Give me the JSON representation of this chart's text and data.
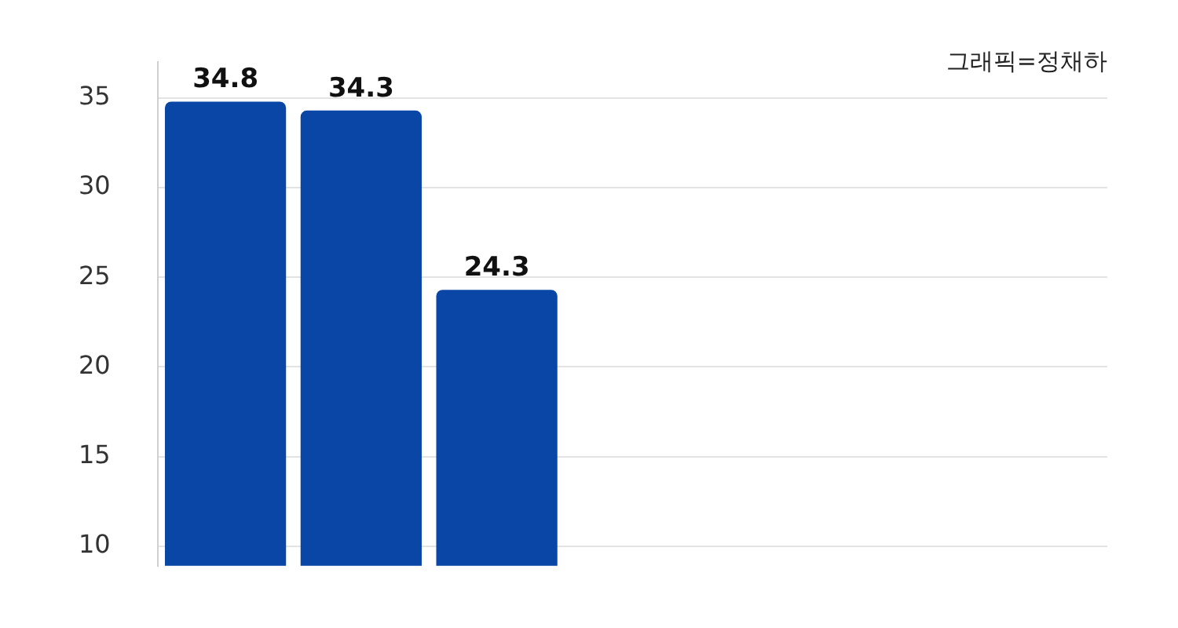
{
  "chart_data": {
    "type": "bar",
    "categories": [
      null,
      null,
      null,
      null,
      null,
      null,
      null
    ],
    "values": [
      34.8,
      34.3,
      24.3,
      null,
      null,
      null,
      null
    ],
    "color": "#0a46a5",
    "ylim": [
      8.9,
      37
    ],
    "yticks": [
      10,
      15,
      20,
      25,
      30,
      35
    ],
    "grid": "y",
    "data_labels": true,
    "tick_labels": "y",
    "annotations": [
      "그래픽=정채하"
    ]
  }
}
